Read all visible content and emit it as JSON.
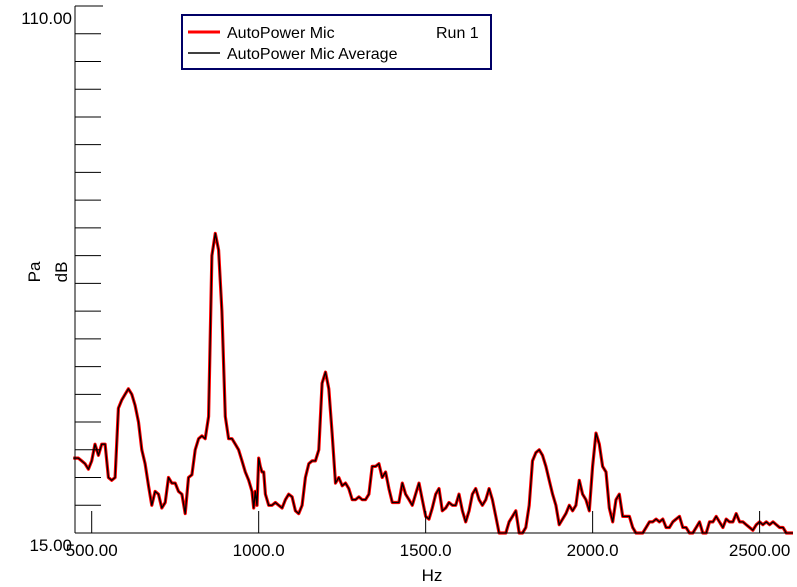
{
  "chart_data": {
    "type": "line",
    "xlabel": "Hz",
    "ylabel_unit": "Pa",
    "ylabel_scale": "dB",
    "xlim": [
      450,
      2600
    ],
    "ylim": [
      15,
      110
    ],
    "x_ticks": [
      {
        "value": 500,
        "label": "500.00"
      },
      {
        "value": 1000,
        "label": "1000.0"
      },
      {
        "value": 1500,
        "label": "1500.0"
      },
      {
        "value": 2000,
        "label": "2000.0"
      },
      {
        "value": 2500,
        "label": "2500.00"
      }
    ],
    "y_ticks": [
      {
        "value": 110,
        "label": "110.00"
      },
      {
        "value": 15,
        "label": "15.00"
      }
    ],
    "y_minor_ticks": [
      15,
      20,
      25,
      30,
      35,
      40,
      45,
      50,
      55,
      60,
      65,
      70,
      75,
      80,
      85,
      90,
      95,
      100,
      105,
      110
    ],
    "legend": {
      "position": "top-center",
      "entries": [
        {
          "label": "AutoPower Mic",
          "extra": "Run 1",
          "color": "#ff0000"
        },
        {
          "label": "AutoPower Mic Average",
          "color": "#000000"
        }
      ]
    },
    "series": [
      {
        "name": "AutoPower Mic",
        "color": "#ff0000",
        "x": [
          445,
          460,
          470,
          480,
          490,
          500,
          510,
          520,
          530,
          540,
          550,
          560,
          570,
          580,
          590,
          600,
          610,
          620,
          630,
          640,
          650,
          660,
          670,
          680,
          690,
          700,
          710,
          720,
          730,
          740,
          750,
          760,
          770,
          780,
          790,
          800,
          810,
          820,
          830,
          840,
          850,
          860,
          870,
          880,
          890,
          900,
          910,
          920,
          930,
          940,
          950,
          960,
          970,
          980,
          985,
          990,
          995,
          1000,
          1005,
          1010,
          1015,
          1020,
          1030,
          1040,
          1050,
          1060,
          1070,
          1080,
          1090,
          1100,
          1110,
          1120,
          1130,
          1140,
          1150,
          1160,
          1170,
          1180,
          1190,
          1200,
          1210,
          1220,
          1230,
          1240,
          1250,
          1260,
          1270,
          1280,
          1290,
          1300,
          1310,
          1320,
          1330,
          1340,
          1350,
          1360,
          1370,
          1380,
          1390,
          1400,
          1410,
          1420,
          1430,
          1440,
          1450,
          1460,
          1470,
          1480,
          1490,
          1500,
          1510,
          1520,
          1530,
          1540,
          1550,
          1560,
          1570,
          1580,
          1590,
          1600,
          1610,
          1620,
          1630,
          1640,
          1650,
          1660,
          1670,
          1680,
          1690,
          1700,
          1710,
          1720,
          1730,
          1740,
          1750,
          1760,
          1770,
          1780,
          1790,
          1800,
          1810,
          1820,
          1830,
          1840,
          1850,
          1860,
          1870,
          1880,
          1890,
          1900,
          1910,
          1920,
          1930,
          1940,
          1950,
          1960,
          1970,
          1980,
          1990,
          2000,
          2010,
          2020,
          2030,
          2040,
          2050,
          2060,
          2070,
          2080,
          2090,
          2100,
          2110,
          2120,
          2130,
          2140,
          2150,
          2160,
          2170,
          2180,
          2190,
          2200,
          2210,
          2220,
          2230,
          2240,
          2250,
          2260,
          2270,
          2280,
          2290,
          2300,
          2310,
          2320,
          2330,
          2340,
          2350,
          2360,
          2370,
          2380,
          2390,
          2400,
          2410,
          2420,
          2430,
          2440,
          2450,
          2460,
          2470,
          2480,
          2490,
          2500,
          2510,
          2520,
          2530,
          2540,
          2550,
          2560,
          2570,
          2580,
          2590,
          2600
        ],
        "y": [
          28.5,
          28.5,
          28.0,
          27.5,
          26.5,
          28.0,
          31.0,
          29.0,
          31.0,
          31.0,
          25.0,
          24.5,
          25.0,
          37.5,
          39.0,
          40.0,
          41.0,
          40.0,
          38.0,
          35.0,
          30.0,
          27.5,
          23.5,
          20.0,
          22.5,
          22.0,
          19.5,
          20.5,
          25.0,
          24.0,
          24.0,
          22.5,
          22.0,
          18.5,
          25.0,
          25.5,
          30.0,
          32.0,
          32.5,
          32.0,
          36.0,
          65.0,
          69.0,
          66.0,
          55.0,
          36.0,
          32.0,
          32.0,
          31.0,
          30.0,
          28.0,
          26.0,
          24.5,
          22.5,
          19.5,
          22.5,
          20.0,
          28.5,
          27.0,
          26.0,
          26.0,
          22.0,
          20.0,
          20.0,
          20.5,
          20.0,
          19.5,
          21.0,
          22.0,
          21.5,
          19.0,
          18.5,
          20.0,
          25.0,
          27.5,
          28.0,
          28.0,
          30.0,
          42.0,
          44.0,
          41.0,
          33.0,
          24.0,
          25.0,
          23.5,
          24.0,
          23.0,
          21.0,
          21.0,
          21.5,
          21.0,
          21.0,
          22.0,
          27.0,
          27.0,
          27.5,
          25.0,
          26.0,
          23.0,
          20.5,
          20.5,
          20.5,
          24.0,
          22.0,
          21.0,
          20.0,
          22.0,
          24.0,
          21.0,
          18.0,
          17.5,
          19.5,
          22.0,
          23.0,
          19.0,
          19.5,
          20.5,
          20.0,
          20.0,
          22.0,
          19.0,
          17.0,
          19.0,
          22.0,
          23.0,
          21.0,
          20.0,
          21.0,
          23.0,
          21.0,
          18.0,
          15.0,
          14.0,
          15.0,
          17.0,
          18.0,
          19.0,
          14.0,
          14.5,
          16.0,
          20.0,
          28.0,
          29.5,
          30.0,
          29.0,
          27.0,
          24.5,
          22.0,
          20.0,
          16.5,
          17.5,
          18.5,
          20.0,
          19.0,
          20.0,
          24.5,
          22.0,
          21.0,
          19.0,
          27.0,
          33.0,
          31.0,
          27.0,
          26.0,
          19.5,
          17.0,
          21.0,
          22.0,
          18.0,
          18.0,
          18.0,
          16.0,
          12.5,
          12.5,
          14.0,
          16.0,
          17.0,
          17.0,
          17.5,
          17.0,
          17.5,
          16.0,
          16.0,
          17.0,
          17.5,
          18.0,
          16.0,
          16.0,
          14.0,
          15.0,
          16.0,
          17.0,
          13.0,
          13.5,
          17.0,
          17.0,
          18.0,
          17.0,
          16.0,
          17.5,
          17.0,
          17.0,
          18.5,
          17.0,
          17.0,
          16.5,
          16.0,
          15.5,
          16.5,
          17.0,
          16.5,
          17.0,
          16.5,
          17.0,
          16.5,
          16.0,
          16.0,
          15.0,
          14.5,
          14.0
        ]
      },
      {
        "name": "AutoPower Mic Average",
        "color": "#000000",
        "x": [
          445,
          460,
          470,
          480,
          490,
          500,
          510,
          520,
          530,
          540,
          550,
          560,
          570,
          580,
          590,
          600,
          610,
          620,
          630,
          640,
          650,
          660,
          670,
          680,
          690,
          700,
          710,
          720,
          730,
          740,
          750,
          760,
          770,
          780,
          790,
          800,
          810,
          820,
          830,
          840,
          850,
          860,
          870,
          880,
          890,
          900,
          910,
          920,
          930,
          940,
          950,
          960,
          970,
          980,
          985,
          990,
          995,
          1000,
          1005,
          1010,
          1015,
          1020,
          1030,
          1040,
          1050,
          1060,
          1070,
          1080,
          1090,
          1100,
          1110,
          1120,
          1130,
          1140,
          1150,
          1160,
          1170,
          1180,
          1190,
          1200,
          1210,
          1220,
          1230,
          1240,
          1250,
          1260,
          1270,
          1280,
          1290,
          1300,
          1310,
          1320,
          1330,
          1340,
          1350,
          1360,
          1370,
          1380,
          1390,
          1400,
          1410,
          1420,
          1430,
          1440,
          1450,
          1460,
          1470,
          1480,
          1490,
          1500,
          1510,
          1520,
          1530,
          1540,
          1550,
          1560,
          1570,
          1580,
          1590,
          1600,
          1610,
          1620,
          1630,
          1640,
          1650,
          1660,
          1670,
          1680,
          1690,
          1700,
          1710,
          1720,
          1730,
          1740,
          1750,
          1760,
          1770,
          1780,
          1790,
          1800,
          1810,
          1820,
          1830,
          1840,
          1850,
          1860,
          1870,
          1880,
          1890,
          1900,
          1910,
          1920,
          1930,
          1940,
          1950,
          1960,
          1970,
          1980,
          1990,
          2000,
          2010,
          2020,
          2030,
          2040,
          2050,
          2060,
          2070,
          2080,
          2090,
          2100,
          2110,
          2120,
          2130,
          2140,
          2150,
          2160,
          2170,
          2180,
          2190,
          2200,
          2210,
          2220,
          2230,
          2240,
          2250,
          2260,
          2270,
          2280,
          2290,
          2300,
          2310,
          2320,
          2330,
          2340,
          2350,
          2360,
          2370,
          2380,
          2390,
          2400,
          2410,
          2420,
          2430,
          2440,
          2450,
          2460,
          2470,
          2480,
          2490,
          2500,
          2510,
          2520,
          2530,
          2540,
          2550,
          2560,
          2570,
          2580,
          2590,
          2600
        ],
        "y": [
          28.5,
          28.5,
          28.0,
          27.5,
          26.5,
          28.0,
          31.0,
          29.0,
          31.0,
          31.0,
          25.0,
          24.5,
          25.0,
          37.5,
          39.0,
          40.0,
          41.0,
          40.0,
          38.0,
          35.0,
          30.0,
          27.5,
          23.5,
          20.0,
          22.5,
          22.0,
          19.5,
          20.5,
          25.0,
          24.0,
          24.0,
          22.5,
          22.0,
          18.5,
          25.0,
          25.5,
          30.0,
          32.0,
          32.5,
          32.0,
          36.0,
          65.0,
          69.0,
          66.0,
          55.0,
          36.0,
          32.0,
          32.0,
          31.0,
          30.0,
          28.0,
          26.0,
          24.5,
          22.5,
          19.5,
          22.5,
          20.0,
          28.5,
          27.0,
          26.0,
          26.0,
          22.0,
          20.0,
          20.0,
          20.5,
          20.0,
          19.5,
          21.0,
          22.0,
          21.5,
          19.0,
          18.5,
          20.0,
          25.0,
          27.5,
          28.0,
          28.0,
          30.0,
          42.0,
          44.0,
          41.0,
          33.0,
          24.0,
          25.0,
          23.5,
          24.0,
          23.0,
          21.0,
          21.0,
          21.5,
          21.0,
          21.0,
          22.0,
          27.0,
          27.0,
          27.5,
          25.0,
          26.0,
          23.0,
          20.5,
          20.5,
          20.5,
          24.0,
          22.0,
          21.0,
          20.0,
          22.0,
          24.0,
          21.0,
          18.0,
          17.5,
          19.5,
          22.0,
          23.0,
          19.0,
          19.5,
          20.5,
          20.0,
          20.0,
          22.0,
          19.0,
          17.0,
          19.0,
          22.0,
          23.0,
          21.0,
          20.0,
          21.0,
          23.0,
          21.0,
          18.0,
          15.0,
          14.0,
          15.0,
          17.0,
          18.0,
          19.0,
          14.0,
          14.5,
          16.0,
          20.0,
          28.0,
          29.5,
          30.0,
          29.0,
          27.0,
          24.5,
          22.0,
          20.0,
          16.5,
          17.5,
          18.5,
          20.0,
          19.0,
          20.0,
          24.5,
          22.0,
          21.0,
          19.0,
          27.0,
          33.0,
          31.0,
          27.0,
          26.0,
          19.5,
          17.0,
          21.0,
          22.0,
          18.0,
          18.0,
          18.0,
          16.0,
          12.5,
          12.5,
          14.0,
          16.0,
          17.0,
          17.0,
          17.5,
          17.0,
          17.5,
          16.0,
          16.0,
          17.0,
          17.5,
          18.0,
          16.0,
          16.0,
          14.0,
          15.0,
          16.0,
          17.0,
          13.0,
          13.5,
          17.0,
          17.0,
          18.0,
          17.0,
          16.0,
          17.5,
          17.0,
          17.0,
          18.5,
          17.0,
          17.0,
          16.5,
          16.0,
          15.5,
          16.5,
          17.0,
          16.5,
          17.0,
          16.5,
          17.0,
          16.5,
          16.0,
          16.0,
          15.0,
          14.5,
          14.0
        ]
      }
    ]
  }
}
